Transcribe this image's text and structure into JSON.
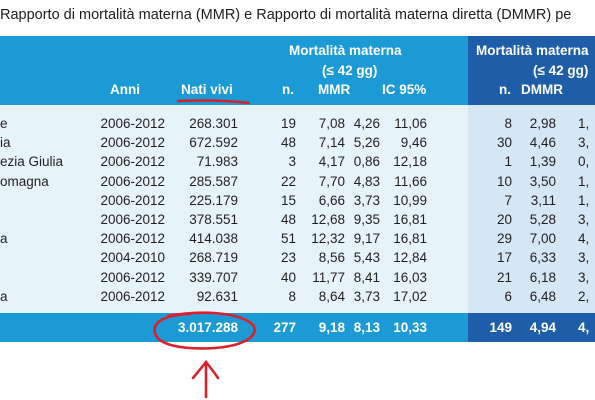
{
  "title": "Rapporto di mortalità materna (MMR) e Rapporto di mortalità materna diretta (DMMR) pe",
  "header": {
    "group1_line1": "Mortalità materna",
    "group1_line2": "(≤ 42 gg)",
    "group2_line1": "Mortalità materna",
    "group2_line2": "(≤ 42 gg)",
    "col_anni": "Anni",
    "col_nati_vivi": "Nati vivi",
    "col_n": "n.",
    "col_mmr": "MMR",
    "col_ic95": "IC 95%",
    "col_n2": "n.",
    "col_dmmr": "DMMR"
  },
  "rows": [
    {
      "region": "e",
      "anni": "2006-2012",
      "nati": "268.301",
      "n": "19",
      "mmr": "7,08",
      "ic_lo": "4,26",
      "ic_hi": "11,06",
      "n2": "8",
      "dmmr": "2,98",
      "extra": "1,"
    },
    {
      "region": "ia",
      "anni": "2006-2012",
      "nati": "672.592",
      "n": "48",
      "mmr": "7,14",
      "ic_lo": "5,26",
      "ic_hi": "9,46",
      "n2": "30",
      "dmmr": "4,46",
      "extra": "3,"
    },
    {
      "region": "ezia Giulia",
      "anni": "2006-2012",
      "nati": "71.983",
      "n": "3",
      "mmr": "4,17",
      "ic_lo": "0,86",
      "ic_hi": "12,18",
      "n2": "1",
      "dmmr": "1,39",
      "extra": "0,"
    },
    {
      "region": "omagna",
      "anni": "2006-2012",
      "nati": "285.587",
      "n": "22",
      "mmr": "7,70",
      "ic_lo": "4,83",
      "ic_hi": "11,66",
      "n2": "10",
      "dmmr": "3,50",
      "extra": "1,"
    },
    {
      "region": "",
      "anni": "2006-2012",
      "nati": "225.179",
      "n": "15",
      "mmr": "6,66",
      "ic_lo": "3,73",
      "ic_hi": "10,99",
      "n2": "7",
      "dmmr": "3,11",
      "extra": "1,"
    },
    {
      "region": "",
      "anni": "2006-2012",
      "nati": "378.551",
      "n": "48",
      "mmr": "12,68",
      "ic_lo": "9,35",
      "ic_hi": "16,81",
      "n2": "20",
      "dmmr": "5,28",
      "extra": "3,"
    },
    {
      "region": "a",
      "anni": "2006-2012",
      "nati": "414.038",
      "n": "51",
      "mmr": "12,32",
      "ic_lo": "9,17",
      "ic_hi": "16,81",
      "n2": "29",
      "dmmr": "7,00",
      "extra": "4,"
    },
    {
      "region": "",
      "anni": "2004-2010",
      "nati": "268.719",
      "n": "23",
      "mmr": "8,56",
      "ic_lo": "5,43",
      "ic_hi": "12,84",
      "n2": "17",
      "dmmr": "6,33",
      "extra": "3,"
    },
    {
      "region": "",
      "anni": "2006-2012",
      "nati": "339.707",
      "n": "40",
      "mmr": "11,77",
      "ic_lo": "8,41",
      "ic_hi": "16,03",
      "n2": "21",
      "dmmr": "6,18",
      "extra": "3,"
    },
    {
      "region": "a",
      "anni": "2006-2012",
      "nati": "92.631",
      "n": "8",
      "mmr": "8,64",
      "ic_lo": "3,73",
      "ic_hi": "17,02",
      "n2": "6",
      "dmmr": "6,48",
      "extra": "2,"
    }
  ],
  "total": {
    "nati": "3.017.288",
    "n": "277",
    "mmr": "9,18",
    "ic_lo": "8,13",
    "ic_hi": "10,33",
    "n2": "149",
    "dmmr": "4,94",
    "extra": "4,"
  },
  "colors": {
    "header_blue": "#1b9ad6",
    "header_dark_blue": "#1e5ea8",
    "row_light": "#e6f3fb",
    "row_dark": "#d5e6f4",
    "annotation_red": "#d9202b"
  }
}
